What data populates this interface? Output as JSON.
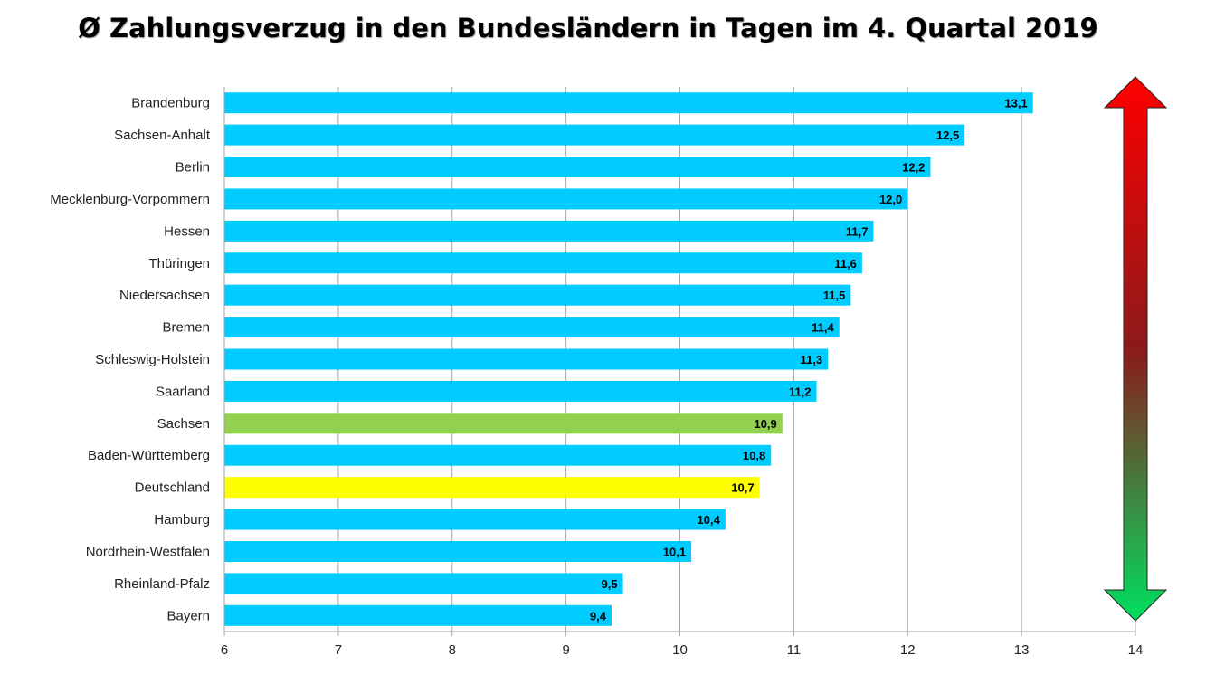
{
  "chart_data": {
    "type": "bar",
    "orientation": "horizontal",
    "title": "Ø Zahlungsverzug in den Bundesländern in Tagen im 4. Quartal 2019",
    "xlabel": "",
    "ylabel": "",
    "xlim": [
      6,
      14
    ],
    "x_ticks": [
      "6",
      "7",
      "8",
      "9",
      "10",
      "11",
      "12",
      "13",
      "14"
    ],
    "categories": [
      "Brandenburg",
      "Sachsen-Anhalt",
      "Berlin",
      "Mecklenburg-Vorpommern",
      "Hessen",
      "Thüringen",
      "Niedersachsen",
      "Bremen",
      "Schleswig-Holstein",
      "Saarland",
      "Sachsen",
      "Baden-Württemberg",
      "Deutschland",
      "Hamburg",
      "Nordrhein-Westfalen",
      "Rheinland-Pfalz",
      "Bayern"
    ],
    "values": [
      13.1,
      12.5,
      12.2,
      12.0,
      11.7,
      11.6,
      11.5,
      11.4,
      11.3,
      11.2,
      10.9,
      10.8,
      10.7,
      10.4,
      10.1,
      9.5,
      9.4
    ],
    "value_labels": [
      "13,1",
      "12,5",
      "12,2",
      "12,0",
      "11,7",
      "11,6",
      "11,5",
      "11,4",
      "11,3",
      "11,2",
      "10,9",
      "10,8",
      "10,7",
      "10,4",
      "10,1",
      "9,5",
      "9,4"
    ],
    "colors": {
      "default": "#00CCFF",
      "highlight": {
        "Sachsen": "#92D050",
        "Deutschland": "#FFFF00"
      },
      "grid": "#A6A6A6",
      "arrow_top": "#FF0000",
      "arrow_mid": "#8B1A1A",
      "arrow_bottom": "#00E060"
    },
    "grid": true,
    "legend": "none",
    "annotation": "double-headed-arrow-red-to-green"
  }
}
